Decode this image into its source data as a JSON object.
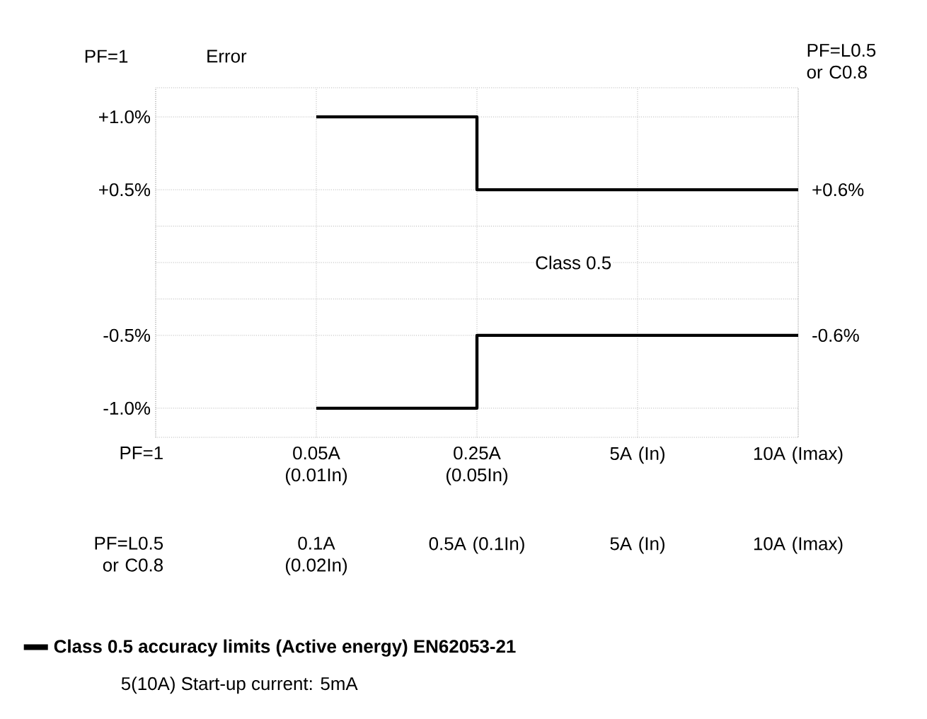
{
  "chart_data": {
    "type": "step",
    "categories": [
      null,
      "0.05A (0.01In)",
      "0.25A (0.05In)",
      "5A (In)",
      "10A (Imax)"
    ],
    "xlabel": "PF=1",
    "ylabel": "Error",
    "y2label": "PF=L0.5 or C0.8",
    "ylim": [
      -1.2,
      1.2
    ],
    "yticks": [
      {
        "value": 1.0,
        "label": "+1.0%"
      },
      {
        "value": 0.5,
        "label": "+0.5%"
      },
      {
        "value": 0.25,
        "label": null
      },
      {
        "value": 0,
        "label": null
      },
      {
        "value": -0.25,
        "label": null
      },
      {
        "value": -0.5,
        "label": "-0.5%"
      },
      {
        "value": -1.0,
        "label": "-1.0%"
      }
    ],
    "y2lim": [
      -1.44,
      1.44
    ],
    "y2ticks": [
      {
        "value": 0.6,
        "label": "+0.6%"
      },
      {
        "value": -0.6,
        "label": "-0.6%"
      }
    ],
    "series": [
      {
        "name": "Class 0.5 accuracy limits (Active energy) EN62053-21",
        "color": "#000000",
        "values": [
          null,
          1.0,
          0.5,
          0.5,
          0.5
        ]
      },
      {
        "color": "#000000",
        "values": [
          null,
          -1.0,
          -0.5,
          -0.5,
          -0.5
        ]
      }
    ],
    "annotations": [
      "PF=1",
      "Class 0.5",
      "5(10A)  Start-up current: 5mA",
      "PF=L0.5 or C0.8",
      "0.1A (0.02In)",
      "0.5A (0.1In)",
      "5A (In)",
      "10A (Imax)"
    ],
    "grid": true,
    "legend": "bottom",
    "line_style": "solid"
  }
}
